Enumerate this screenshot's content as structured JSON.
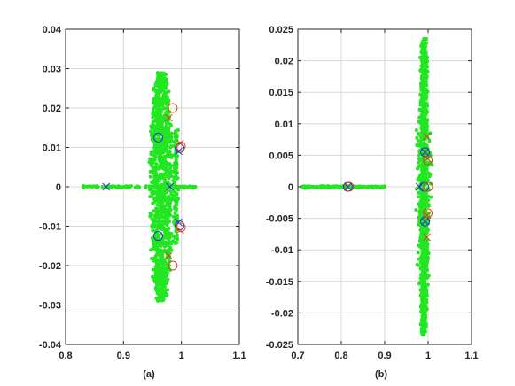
{
  "figure": {
    "background": "#ffffff",
    "panel_labels": [
      "(a)",
      "(b)"
    ]
  },
  "colors": {
    "cloud": "#22e622",
    "blue": "#3030c8",
    "red": "#d24a24",
    "grid": "#d9d9d9",
    "axis": "#262626"
  },
  "chart_data": [
    {
      "type": "scatter",
      "label": "(a)",
      "xlim": [
        0.8,
        1.1
      ],
      "ylim": [
        -0.04,
        0.04
      ],
      "xticks": [
        "0.8",
        "0.9",
        "1",
        "1.1"
      ],
      "xtick_values": [
        0.8,
        0.9,
        1.0,
        1.1
      ],
      "yticks": [
        "0.04",
        "0.03",
        "0.02",
        "0.01",
        "0",
        "-0.01",
        "-0.02",
        "-0.03",
        "-0.04"
      ],
      "ytick_values": [
        0.04,
        0.03,
        0.02,
        0.01,
        0,
        -0.01,
        -0.02,
        -0.03,
        -0.04
      ],
      "grid": true,
      "cloud": {
        "color": "green",
        "real_axis_line": [
          0.83,
          1.025
        ],
        "ring": {
          "center": [
            0.965,
            0
          ],
          "x_halfwidth": 0.022,
          "y_halfheight": 0.029
        }
      },
      "series": [
        {
          "marker": "x",
          "color": "blue",
          "points": [
            [
              0.87,
              0
            ],
            [
              0.98,
              0
            ],
            [
              0.995,
              0.009
            ],
            [
              0.995,
              -0.009
            ]
          ]
        },
        {
          "marker": "o",
          "color": "blue",
          "points": [
            [
              0.96,
              0.0125
            ],
            [
              0.96,
              -0.0125
            ],
            [
              0.997,
              0.0098
            ],
            [
              0.997,
              -0.0098
            ]
          ]
        },
        {
          "marker": "x",
          "color": "red",
          "points": [
            [
              0.978,
              0.0175
            ],
            [
              0.978,
              -0.0175
            ],
            [
              0.998,
              0.011
            ],
            [
              0.998,
              -0.011
            ]
          ]
        },
        {
          "marker": "o",
          "color": "red",
          "points": [
            [
              0.985,
              0.02
            ],
            [
              0.985,
              -0.02
            ],
            [
              0.999,
              0.0103
            ],
            [
              0.999,
              -0.0103
            ]
          ]
        }
      ]
    },
    {
      "type": "scatter",
      "label": "(b)",
      "xlim": [
        0.7,
        1.1
      ],
      "ylim": [
        -0.025,
        0.025
      ],
      "xticks": [
        "0.7",
        "0.8",
        "0.9",
        "1",
        "1.1"
      ],
      "xtick_values": [
        0.7,
        0.8,
        0.9,
        1.0,
        1.1
      ],
      "yticks": [
        "0.025",
        "0.02",
        "0.015",
        "0.01",
        "0.005",
        "0",
        "-0.005",
        "-0.01",
        "-0.015",
        "-0.02",
        "-0.025"
      ],
      "ytick_values": [
        0.025,
        0.02,
        0.015,
        0.01,
        0.005,
        0,
        -0.005,
        -0.01,
        -0.015,
        -0.02,
        -0.025
      ],
      "grid": true,
      "cloud": {
        "color": "green",
        "real_axis_line": [
          0.71,
          0.9
        ],
        "band": {
          "center_x": 0.99,
          "x_halfwidth": 0.012,
          "y_halfheight": 0.0235
        }
      },
      "series": [
        {
          "marker": "x",
          "color": "blue",
          "points": [
            [
              0.815,
              0
            ],
            [
              0.98,
              0
            ],
            [
              0.993,
              0.0055
            ],
            [
              0.993,
              -0.0055
            ]
          ]
        },
        {
          "marker": "o",
          "color": "blue",
          "points": [
            [
              0.815,
              0
            ],
            [
              0.993,
              0.0055
            ],
            [
              0.993,
              -0.0055
            ],
            [
              0.991,
              0
            ]
          ]
        },
        {
          "marker": "x",
          "color": "red",
          "points": [
            [
              0.997,
              0.008
            ],
            [
              0.997,
              -0.008
            ],
            [
              0.998,
              0.0045
            ],
            [
              0.998,
              -0.0045
            ]
          ]
        },
        {
          "marker": "o",
          "color": "red",
          "points": [
            [
              0.818,
              0
            ],
            [
              0.999,
              0.0042
            ],
            [
              0.999,
              -0.0042
            ],
            [
              1.0,
              0
            ]
          ]
        }
      ]
    }
  ]
}
